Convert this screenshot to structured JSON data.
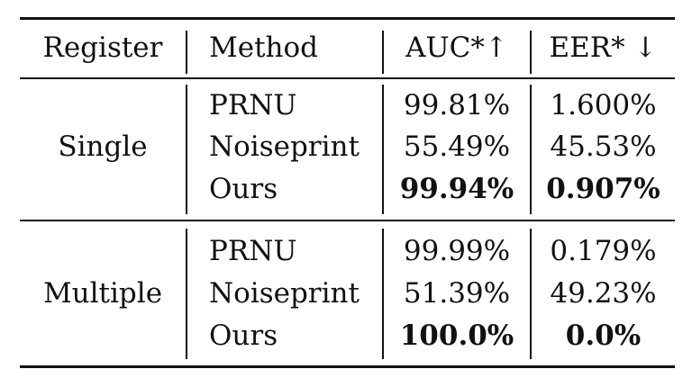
{
  "table": {
    "headers": {
      "register": "Register",
      "method": "Method",
      "auc": "AUC*↑",
      "eer": "EER* ↓"
    },
    "groups": [
      {
        "register": "Single",
        "rows": [
          {
            "method": "PRNU",
            "auc": "99.81%",
            "eer": "1.600%",
            "bold": false
          },
          {
            "method": "Noiseprint",
            "auc": "55.49%",
            "eer": "45.53%",
            "bold": false
          },
          {
            "method": "Ours",
            "auc": "99.94%",
            "eer": "0.907%",
            "bold": true
          }
        ]
      },
      {
        "register": "Multiple",
        "rows": [
          {
            "method": "PRNU",
            "auc": "99.99%",
            "eer": "0.179%",
            "bold": false
          },
          {
            "method": "Noiseprint",
            "auc": "51.39%",
            "eer": "49.23%",
            "bold": false
          },
          {
            "method": "Ours",
            "auc": "100.0%",
            "eer": "0.0%",
            "bold": true
          }
        ]
      }
    ]
  }
}
